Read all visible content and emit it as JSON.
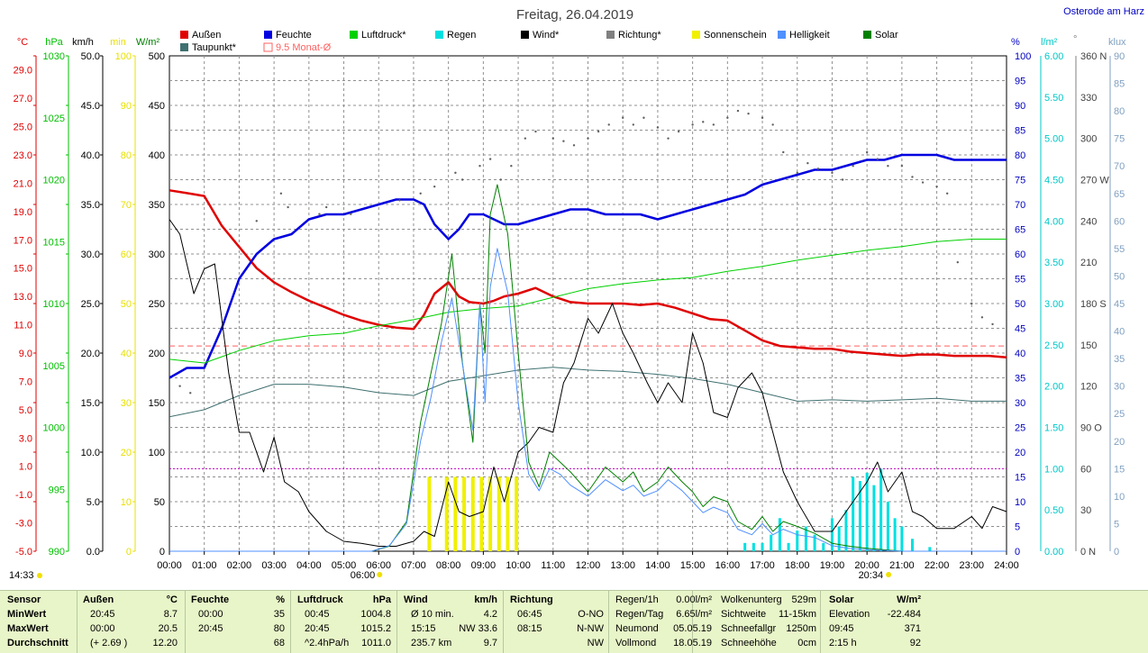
{
  "header": {
    "title": "Freitag, 26.04.2019",
    "location": "Osterode am Harz"
  },
  "legend": [
    {
      "label": "Außen",
      "color": "#e00000"
    },
    {
      "label": "Feuchte",
      "color": "#0000e0"
    },
    {
      "label": "Luftdruck*",
      "color": "#00d000"
    },
    {
      "label": "Regen",
      "color": "#00e0e0"
    },
    {
      "label": "Wind*",
      "color": "#000000"
    },
    {
      "label": "Richtung*",
      "color": "#808080"
    },
    {
      "label": "Sonnenschein",
      "color": "#f0f000"
    },
    {
      "label": "Helligkeit",
      "color": "#5090ff"
    },
    {
      "label": "Solar",
      "color": "#008000"
    },
    {
      "label": "Taupunkt*",
      "color": "#407070"
    },
    {
      "label": "9.5 Monat-Ø",
      "color": "#ff6060"
    }
  ],
  "axes_units": {
    "temp": "°C",
    "pressure": "hPa",
    "wind": "km/h",
    "sun": "min",
    "solar": "W/m²",
    "humidity": "%",
    "rain": "l/m²",
    "direction": "°",
    "light": "klux"
  },
  "axes_ticks": {
    "temp": [
      "29.0",
      "27.0",
      "25.0",
      "23.0",
      "21.0",
      "19.0",
      "17.0",
      "15.0",
      "13.0",
      "11.0",
      "9.0",
      "7.0",
      "5.0",
      "3.0",
      "1.0",
      "-1.0",
      "-3.0",
      "-5.0"
    ],
    "pressure": [
      "1030",
      "1025",
      "1020",
      "1015",
      "1010",
      "1005",
      "1000",
      "995",
      "990"
    ],
    "wind": [
      "50.0",
      "45.0",
      "40.0",
      "35.0",
      "30.0",
      "25.0",
      "20.0",
      "15.0",
      "10.0",
      "5.0",
      "0.0"
    ],
    "sun": [
      "100",
      "90",
      "80",
      "70",
      "60",
      "50",
      "40",
      "30",
      "20",
      "10",
      "0"
    ],
    "solar": [
      "500",
      "450",
      "400",
      "350",
      "300",
      "250",
      "200",
      "150",
      "100",
      "50",
      "0"
    ],
    "humidity": [
      "100",
      "95",
      "90",
      "85",
      "80",
      "75",
      "70",
      "65",
      "60",
      "55",
      "50",
      "45",
      "40",
      "35",
      "30",
      "25",
      "20",
      "15",
      "10",
      "5",
      "0"
    ],
    "rain": [
      "6.00",
      "5.50",
      "5.00",
      "4.50",
      "4.00",
      "3.50",
      "3.00",
      "2.50",
      "2.00",
      "1.50",
      "1.00",
      "0.50",
      "0.00"
    ],
    "direction": [
      "360 N",
      "330",
      "300",
      "270 W",
      "240",
      "210",
      "180 S",
      "150",
      "120",
      "90 O",
      "60",
      "30",
      "0 N"
    ],
    "light": [
      "90",
      "85",
      "80",
      "75",
      "70",
      "65",
      "60",
      "55",
      "50",
      "45",
      "40",
      "35",
      "30",
      "25",
      "20",
      "15",
      "10",
      "5",
      "0"
    ],
    "x": [
      "00:00",
      "01:00",
      "02:00",
      "03:00",
      "04:00",
      "05:00",
      "06:00",
      "07:00",
      "08:00",
      "09:00",
      "10:00",
      "11:00",
      "12:00",
      "13:00",
      "14:00",
      "15:00",
      "16:00",
      "17:00",
      "18:00",
      "19:00",
      "20:00",
      "21:00",
      "22:00",
      "23:00",
      "24:00"
    ]
  },
  "markers": {
    "sunrise": "06:00",
    "sunset": "20:34",
    "now": "14:33"
  },
  "chart_data": {
    "type": "line",
    "x_range": [
      0,
      24
    ],
    "temp_ylim": [
      -5,
      30
    ],
    "humidity_ylim": [
      0,
      100
    ],
    "pressure_ylim": [
      990,
      1030
    ],
    "wind_ylim": [
      0,
      50
    ],
    "solar_ylim": [
      0,
      500
    ],
    "rain_ylim": [
      0,
      6
    ],
    "direction_ylim": [
      0,
      360
    ],
    "light_ylim": [
      0,
      90
    ],
    "sun_ylim": [
      0,
      100
    ],
    "avg_month_temp": 9.5,
    "series": [
      {
        "name": "Außen",
        "axis": "temp",
        "color": "#e00000",
        "width": 2.5,
        "x": [
          0,
          0.5,
          1,
          1.5,
          2,
          2.5,
          3,
          3.5,
          4,
          4.5,
          5,
          5.5,
          6,
          6.5,
          7,
          7.3,
          7.6,
          8,
          8.3,
          8.6,
          9,
          9.3,
          9.6,
          10,
          10.5,
          11,
          11.5,
          12,
          12.5,
          13,
          13.5,
          14,
          14.5,
          15,
          15.5,
          16,
          16.5,
          17,
          17.5,
          18,
          18.5,
          19,
          19.5,
          20,
          20.5,
          21,
          21.5,
          22,
          22.5,
          23,
          23.5,
          24
        ],
        "y": [
          20.5,
          20.3,
          20.1,
          18.0,
          16.5,
          15.0,
          14.0,
          13.3,
          12.7,
          12.2,
          11.7,
          11.3,
          11.0,
          10.8,
          10.7,
          11.7,
          13.2,
          14.0,
          13.0,
          12.6,
          12.5,
          12.7,
          13.0,
          13.2,
          13.6,
          13.0,
          12.6,
          12.5,
          12.5,
          12.5,
          12.4,
          12.5,
          12.2,
          11.8,
          11.4,
          11.3,
          10.6,
          9.9,
          9.5,
          9.4,
          9.3,
          9.3,
          9.1,
          9.0,
          8.9,
          8.8,
          8.9,
          8.9,
          8.8,
          8.8,
          8.8,
          8.7
        ]
      },
      {
        "name": "Feuchte",
        "axis": "humidity",
        "color": "#0000e0",
        "width": 2.5,
        "x": [
          0,
          0.5,
          1,
          1.5,
          2,
          2.5,
          3,
          3.5,
          4,
          4.5,
          5,
          5.5,
          6,
          6.5,
          7,
          7.3,
          7.6,
          8,
          8.3,
          8.6,
          9,
          9.3,
          9.6,
          10,
          10.5,
          11,
          11.5,
          12,
          12.5,
          13,
          13.5,
          14,
          14.5,
          15,
          15.5,
          16,
          16.5,
          17,
          17.5,
          18,
          18.5,
          19,
          19.5,
          20,
          20.5,
          21,
          21.5,
          22,
          22.5,
          23,
          23.5,
          24
        ],
        "y": [
          35,
          37,
          37,
          45,
          55,
          60,
          63,
          64,
          67,
          68,
          68,
          69,
          70,
          71,
          71,
          70,
          66,
          63,
          65,
          68,
          68,
          67,
          66,
          66,
          67,
          68,
          69,
          69,
          68,
          68,
          68,
          67,
          68,
          69,
          70,
          71,
          72,
          74,
          75,
          76,
          77,
          77,
          78,
          79,
          79,
          80,
          80,
          80,
          79,
          79,
          79,
          79
        ]
      },
      {
        "name": "Luftdruck*",
        "axis": "pressure",
        "color": "#00d000",
        "width": 1,
        "x": [
          0,
          1,
          2,
          3,
          4,
          5,
          6,
          7,
          8,
          9,
          10,
          11,
          12,
          13,
          14,
          15,
          16,
          17,
          18,
          19,
          20,
          21,
          22,
          23,
          24
        ],
        "y": [
          1005.5,
          1005.2,
          1006.2,
          1007.0,
          1007.4,
          1007.6,
          1008.2,
          1008.7,
          1009.3,
          1009.6,
          1009.8,
          1010.5,
          1011.2,
          1011.6,
          1011.9,
          1012.1,
          1012.6,
          1013.0,
          1013.5,
          1013.9,
          1014.3,
          1014.6,
          1015.0,
          1015.2,
          1015.2
        ]
      },
      {
        "name": "Taupunkt*",
        "axis": "temp",
        "color": "#407070",
        "width": 1,
        "x": [
          0,
          1,
          2,
          3,
          4,
          5,
          6,
          7,
          8,
          9,
          10,
          11,
          12,
          13,
          14,
          15,
          16,
          17,
          18,
          19,
          20,
          21,
          22,
          23,
          24
        ],
        "y": [
          4.5,
          5.0,
          6.0,
          6.8,
          6.8,
          6.6,
          6.2,
          6.0,
          7.0,
          7.4,
          7.8,
          8.0,
          7.8,
          7.7,
          7.5,
          7.2,
          6.8,
          6.2,
          5.6,
          5.7,
          5.6,
          5.7,
          5.8,
          5.6,
          5.6
        ]
      },
      {
        "name": "Wind*",
        "axis": "wind",
        "color": "#000000",
        "width": 1,
        "x": [
          0,
          0.3,
          0.7,
          1,
          1.3,
          1.7,
          2,
          2.3,
          2.7,
          3,
          3.3,
          3.7,
          4,
          4.5,
          5,
          5.5,
          6,
          6.5,
          7,
          7.3,
          7.6,
          8,
          8.3,
          8.6,
          9,
          9.3,
          9.6,
          10,
          10.3,
          10.6,
          11,
          11.3,
          11.6,
          12,
          12.3,
          12.7,
          13,
          13.3,
          13.7,
          14,
          14.3,
          14.7,
          15,
          15.3,
          15.6,
          16,
          16.3,
          16.7,
          17,
          17.3,
          17.6,
          18,
          18.5,
          19,
          19.3,
          19.6,
          20,
          20.3,
          20.6,
          21,
          21.3,
          21.6,
          22,
          22.5,
          23,
          23.3,
          23.6,
          24
        ],
        "y": [
          33.5,
          32,
          26,
          28.5,
          29,
          18,
          12,
          12,
          8,
          11.5,
          7,
          6,
          4,
          2,
          1,
          0.8,
          0.5,
          0.5,
          1,
          2,
          1.5,
          7,
          4,
          3.5,
          4,
          8.5,
          5,
          10,
          11,
          12.5,
          12,
          17,
          19,
          23.5,
          22,
          25,
          22,
          20,
          17,
          15,
          17,
          15,
          22,
          19,
          14,
          13.5,
          16.5,
          18,
          16,
          12,
          8,
          5,
          2,
          2,
          3.5,
          5,
          7,
          9,
          6,
          8,
          4,
          3.5,
          2.3,
          2.3,
          3.5,
          2.3,
          4.5,
          4
        ]
      },
      {
        "name": "Solar",
        "axis": "solar",
        "color": "#008000",
        "width": 1,
        "x": [
          0,
          5.8,
          6.3,
          6.8,
          7.2,
          7.5,
          7.8,
          8.1,
          8.4,
          8.7,
          8.9,
          9.05,
          9.2,
          9.4,
          9.7,
          10.0,
          10.3,
          10.6,
          10.9,
          11.2,
          11.5,
          12,
          12.5,
          13,
          13.3,
          13.6,
          14,
          14.3,
          14.7,
          15,
          15.3,
          15.6,
          16,
          16.3,
          16.7,
          17,
          17.3,
          17.6,
          18,
          18.5,
          19,
          19.5,
          20,
          21,
          24
        ],
        "y": [
          0,
          0,
          5,
          30,
          130,
          180,
          230,
          300,
          190,
          110,
          250,
          200,
          340,
          370,
          320,
          200,
          90,
          65,
          100,
          90,
          80,
          60,
          85,
          70,
          80,
          60,
          70,
          85,
          70,
          60,
          45,
          55,
          50,
          30,
          22,
          35,
          20,
          30,
          25,
          18,
          8,
          5,
          3,
          0,
          0
        ]
      },
      {
        "name": "Helligkeit",
        "axis": "light",
        "color": "#5090ff",
        "width": 1,
        "x": [
          0,
          5.8,
          6.3,
          6.8,
          7.2,
          7.5,
          7.8,
          8.1,
          8.4,
          8.7,
          8.9,
          9.05,
          9.2,
          9.4,
          9.7,
          10.0,
          10.3,
          10.6,
          10.9,
          11.2,
          11.5,
          12,
          12.5,
          13,
          13.3,
          13.6,
          14,
          14.3,
          14.7,
          15,
          15.3,
          15.6,
          16,
          16.3,
          16.7,
          17,
          17.3,
          17.6,
          18,
          18.5,
          19,
          19.5,
          20,
          21,
          24
        ],
        "y": [
          0,
          0,
          1,
          5,
          20,
          28,
          38,
          46,
          34,
          22,
          45,
          27,
          48,
          55,
          47,
          27,
          14,
          11,
          15,
          14,
          12,
          10,
          13,
          11,
          12,
          10,
          11,
          13,
          11,
          9,
          7,
          8,
          7,
          4,
          3,
          5,
          3,
          4,
          3,
          2.5,
          1,
          0.5,
          0.3,
          0,
          0
        ]
      }
    ],
    "direction_points": {
      "x": [
        0.3,
        0.6,
        2.5,
        3.2,
        3.4,
        4.3,
        4.5,
        5.2,
        6.6,
        7.2,
        7.6,
        8.2,
        8.4,
        8.9,
        9.2,
        9.5,
        9.8,
        10.2,
        10.5,
        11,
        11.3,
        11.6,
        12,
        12.3,
        12.6,
        13,
        13.3,
        13.6,
        14,
        14.3,
        14.6,
        15,
        15.3,
        15.6,
        16,
        16.3,
        16.6,
        17,
        17.3,
        17.6,
        18,
        18.3,
        18.6,
        19,
        19.3,
        19.6,
        20,
        20.3,
        20.6,
        21,
        21.3,
        21.6,
        22,
        22.3,
        22.6,
        23,
        23.3,
        23.6
      ],
      "y": [
        120,
        115,
        240,
        260,
        250,
        245,
        250,
        245,
        255,
        260,
        265,
        275,
        270,
        280,
        285,
        270,
        280,
        300,
        305,
        300,
        298,
        295,
        300,
        305,
        310,
        315,
        310,
        315,
        308,
        300,
        305,
        310,
        312,
        310,
        315,
        320,
        318,
        315,
        310,
        290,
        275,
        282,
        278,
        275,
        270,
        280,
        290,
        285,
        280,
        280,
        272,
        268,
        265,
        260,
        210,
        180,
        170,
        165
      ]
    },
    "rain_hourly": {
      "x": [
        16.5,
        16.75,
        17.0,
        17.25,
        17.5,
        17.75,
        18.0,
        18.25,
        18.5,
        18.75,
        19.0,
        19.2,
        19.4,
        19.6,
        19.8,
        20.0,
        20.2,
        20.4,
        20.6,
        20.8,
        21.0,
        21.3,
        21.8
      ],
      "y": [
        0.1,
        0.1,
        0.1,
        0.2,
        0.4,
        0.1,
        0.25,
        0.3,
        0.2,
        0.1,
        0.4,
        0.3,
        0.5,
        0.9,
        0.85,
        0.95,
        0.8,
        1.0,
        0.6,
        0.4,
        0.3,
        0.15,
        0.05
      ]
    },
    "sunshine_bars": {
      "x": [
        7.45,
        7.95,
        8.2,
        8.45,
        8.7,
        8.95,
        9.2,
        9.45,
        9.7,
        9.95
      ],
      "y": [
        15,
        15,
        15,
        15,
        15,
        15,
        15,
        15,
        15,
        15
      ]
    }
  },
  "bottom": {
    "sensor": {
      "title": "Sensor",
      "rows": [
        "MinWert",
        "MaxWert",
        "Durchschnitt"
      ]
    },
    "aussen": {
      "title": "Außen",
      "unit": "°C",
      "rows": [
        [
          "20:45",
          "8.7"
        ],
        [
          "00:00",
          "20.5"
        ],
        [
          "(+ 2.69 )",
          "12.20"
        ]
      ]
    },
    "feuchte": {
      "title": "Feuchte",
      "unit": "%",
      "rows": [
        [
          "00:00",
          "35"
        ],
        [
          "20:45",
          "80"
        ],
        [
          "",
          "68"
        ]
      ]
    },
    "luftdruck": {
      "title": "Luftdruck",
      "unit": "hPa",
      "rows": [
        [
          "00:45",
          "1004.8"
        ],
        [
          "20:45",
          "1015.2"
        ],
        [
          "^2.4hPa/h",
          "1011.0"
        ]
      ]
    },
    "wind": {
      "title": "Wind",
      "unit": "km/h",
      "rows": [
        [
          "Ø 10 min.",
          "4.2"
        ],
        [
          "15:15",
          "NW 33.6"
        ],
        [
          "235.7 km",
          "9.7"
        ]
      ]
    },
    "richtung": {
      "title": "Richtung",
      "rows": [
        [
          "06:45",
          "O-NO"
        ],
        [
          "08:15",
          "N-NW"
        ],
        [
          "",
          "NW"
        ]
      ]
    },
    "misc": [
      [
        "Regen/1h",
        "0.00l/m²"
      ],
      [
        "Regen/Tag",
        "6.65l/m²"
      ],
      [
        "Neumond",
        "05.05.19"
      ],
      [
        "Vollmond",
        "18.05.19"
      ]
    ],
    "misc2": [
      [
        "Wolkenunterg",
        "529m"
      ],
      [
        "Sichtweite",
        "11-15km"
      ],
      [
        "Schneefallgr",
        "1250m"
      ],
      [
        "Schneehöhe",
        "0cm"
      ]
    ],
    "solar": {
      "title": "Solar",
      "unit": "W/m²",
      "rows": [
        [
          "Elevation",
          "-22.484"
        ],
        [
          "09:45",
          "371"
        ],
        [
          "2:15 h",
          "92"
        ]
      ]
    }
  }
}
